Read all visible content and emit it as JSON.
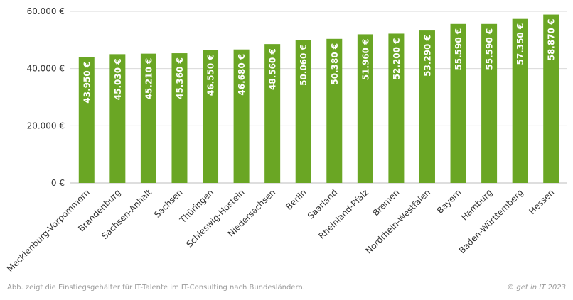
{
  "chart_data": {
    "type": "bar",
    "categories": [
      "Mecklenburg-Vorpommern",
      "Brandenburg",
      "Sachsen-Anhalt",
      "Sachsen",
      "Thüringen",
      "Schleswig-Hostein",
      "Niedersachsen",
      "Berlin",
      "Saarland",
      "Rheinland-Pfalz",
      "Bremen",
      "Nordrhein-Westfalen",
      "Bayern",
      "Hamburg",
      "Baden-Württemberg",
      "Hessen"
    ],
    "values": [
      43950,
      45030,
      45210,
      45360,
      46550,
      46680,
      48560,
      50060,
      50380,
      51960,
      52200,
      53290,
      55590,
      55590,
      57350,
      58870
    ],
    "value_labels": [
      "43.950 €",
      "45.030 €",
      "45.210 €",
      "45.360 €",
      "46.550 €",
      "46.680 €",
      "48.560 €",
      "50.060 €",
      "50.380 €",
      "51.960 €",
      "52.200 €",
      "53.290 €",
      "55.590 €",
      "55.590 €",
      "57.350 €",
      "58.870 €"
    ],
    "ylim": [
      0,
      60000
    ],
    "yticks": [
      0,
      20000,
      40000,
      60000
    ],
    "ytick_labels": [
      "0 €",
      "20.000 €",
      "40.000 €",
      "60.000 €"
    ],
    "grid": true,
    "bar_color": "#6aa624",
    "title": "",
    "xlabel": "",
    "ylabel": ""
  },
  "footer": {
    "caption": "Abb. zeigt die Einstiegsgehälter für IT-Talente im IT-Consulting nach Bundesländern.",
    "copyright": "© get in IT 2023"
  }
}
